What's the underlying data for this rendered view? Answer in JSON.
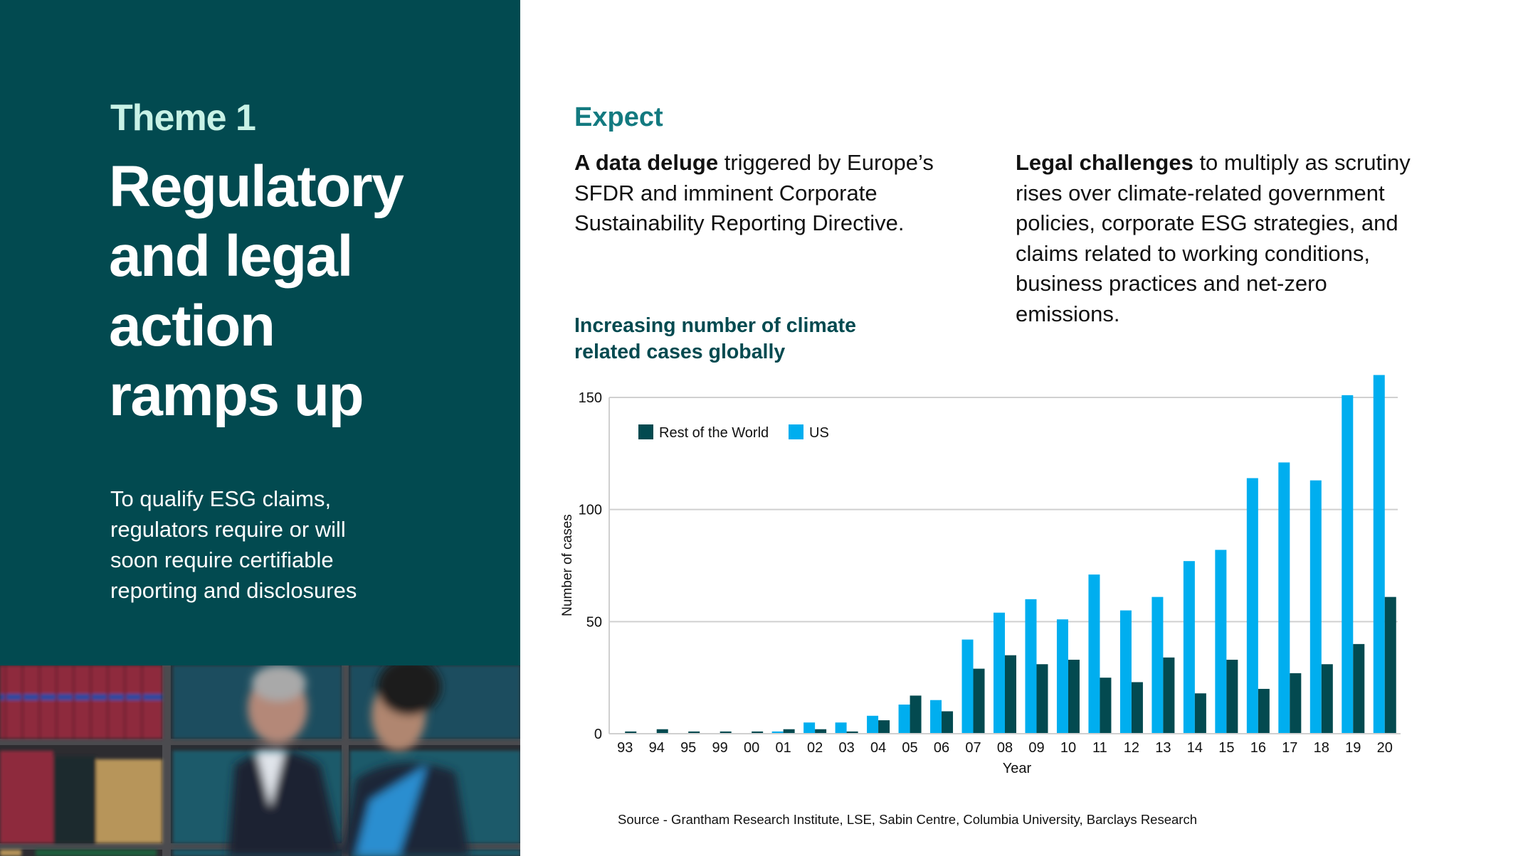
{
  "left_panel": {
    "theme_label": "Theme 1",
    "headline_lines": [
      "Regulatory",
      "and legal",
      "action",
      "ramps up"
    ],
    "subtext_lines": [
      "To qualify ESG claims,",
      "regulators require or will",
      "soon require certifiable",
      "reporting and disclosures"
    ],
    "background_color": "#024a50",
    "photo_alt": "Two blurred business people walking past shelves of law books"
  },
  "expect": {
    "heading": "Expect",
    "left_paragraph": {
      "bold": "A data deluge",
      "lines": [
        " triggered by Europe’s",
        "SFDR and imminent Corporate",
        "Sustainability Reporting Directive."
      ]
    },
    "right_paragraph": {
      "bold": "Legal challenges",
      "lines": [
        " to multiply as scrutiny",
        "rises over climate-related government",
        "policies, corporate ESG strategies, and",
        "claims related to working conditions,",
        "business practices and net-zero",
        "emissions."
      ]
    }
  },
  "chart_title_lines": [
    "Increasing number of climate",
    "related cases globally"
  ],
  "source_note": "Source - Grantham Research Institute, LSE, Sabin Centre, Columbia University, Barclays Research",
  "colors": {
    "rest_of_world": "#034a50",
    "us": "#00aeef",
    "accent": "#137a80",
    "gridline": "#d0d0d0"
  },
  "chart_data": {
    "type": "bar",
    "title": "Increasing number of climate related cases globally",
    "xlabel": "Year",
    "ylabel": "Number of cases",
    "ylim": [
      0,
      160
    ],
    "yticks": [
      0,
      50,
      100,
      150
    ],
    "grid": true,
    "legend_position": "top-left inside",
    "categories": [
      "93",
      "94",
      "95",
      "99",
      "00",
      "01",
      "02",
      "03",
      "04",
      "05",
      "06",
      "07",
      "08",
      "09",
      "10",
      "11",
      "12",
      "13",
      "14",
      "15",
      "16",
      "17",
      "18",
      "19",
      "20"
    ],
    "series": [
      {
        "name": "US",
        "color": "#00aeef",
        "values": [
          0,
          0,
          0,
          0,
          0,
          1,
          5,
          5,
          8,
          13,
          15,
          42,
          54,
          60,
          51,
          71,
          55,
          61,
          77,
          82,
          114,
          121,
          113,
          151,
          160
        ]
      },
      {
        "name": "Rest of the World",
        "color": "#034a50",
        "values": [
          1,
          2,
          1,
          1,
          1,
          2,
          2,
          1,
          6,
          17,
          10,
          29,
          35,
          31,
          33,
          25,
          23,
          34,
          18,
          33,
          20,
          27,
          31,
          40,
          61
        ]
      }
    ],
    "legend": [
      "Rest of the World",
      "US"
    ]
  }
}
